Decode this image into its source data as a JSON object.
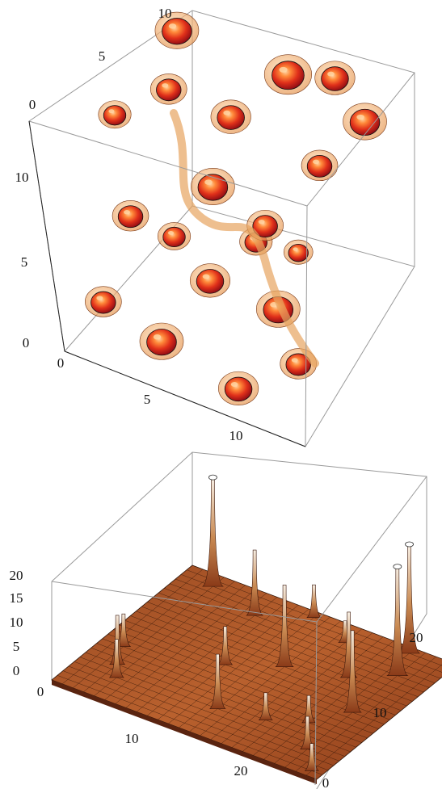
{
  "chart_data": [
    {
      "type": "3d-contour",
      "description_kind": "3D isosurface plot of density blobs inside a bounding cube",
      "axes": {
        "x": {
          "ticks": [
            "0",
            "5",
            "10"
          ],
          "range": [
            0,
            13
          ]
        },
        "y": {
          "ticks": [
            "0",
            "5",
            "10"
          ],
          "range": [
            0,
            13
          ]
        },
        "z": {
          "ticks": [
            "0",
            "5",
            "10"
          ],
          "range": [
            0,
            13
          ]
        },
        "back_top_ticks": [
          "0",
          "5",
          "10"
        ]
      },
      "colors": {
        "fill_outer": "#f0a060",
        "fill_inner": "#e0301a",
        "core": "#8a0a14",
        "highlight": "#ffd7a8",
        "box": "#888888"
      },
      "grid": false,
      "blobs": [
        {
          "x": 2,
          "y": 11,
          "z": 12,
          "r": 1.2
        },
        {
          "x": 3,
          "y": 8,
          "z": 11,
          "r": 1.0
        },
        {
          "x": 1,
          "y": 6,
          "z": 10,
          "r": 0.9
        },
        {
          "x": 5,
          "y": 10,
          "z": 9,
          "r": 1.1
        },
        {
          "x": 8,
          "y": 11,
          "z": 12,
          "r": 1.3
        },
        {
          "x": 10,
          "y": 12,
          "z": 12,
          "r": 1.1
        },
        {
          "x": 12,
          "y": 11,
          "z": 11,
          "r": 1.2
        },
        {
          "x": 11,
          "y": 8,
          "z": 10,
          "r": 1.0
        },
        {
          "x": 6,
          "y": 6,
          "z": 8,
          "r": 1.2
        },
        {
          "x": 3,
          "y": 3,
          "z": 7,
          "r": 1.0
        },
        {
          "x": 7,
          "y": 3,
          "z": 5,
          "r": 1.1
        },
        {
          "x": 10,
          "y": 4,
          "z": 4,
          "r": 1.2
        },
        {
          "x": 2,
          "y": 1,
          "z": 3,
          "r": 1.0
        },
        {
          "x": 5,
          "y": 1,
          "z": 2,
          "r": 1.2
        },
        {
          "x": 9,
          "y": 1,
          "z": 1,
          "r": 1.1
        },
        {
          "x": 12,
          "y": 2,
          "z": 3,
          "r": 1.0
        },
        {
          "x": 4,
          "y": 5,
          "z": 5,
          "r": 0.9
        },
        {
          "x": 8,
          "y": 7,
          "z": 6,
          "r": 1.0
        },
        {
          "x": 11,
          "y": 5,
          "z": 7,
          "r": 0.8
        },
        {
          "x": 6,
          "y": 9,
          "z": 3,
          "r": 0.9
        }
      ]
    },
    {
      "type": "surface",
      "description_kind": "3D surface plot over a 25x25 grid with sharp peaks",
      "axes": {
        "x": {
          "ticks": [
            "0",
            "10",
            "20"
          ],
          "range": [
            0,
            25
          ]
        },
        "y": {
          "ticks": [
            "0",
            "10",
            "20"
          ],
          "range": [
            0,
            25
          ]
        },
        "z": {
          "ticks": [
            "0",
            "5",
            "10",
            "15",
            "20"
          ],
          "range": [
            0,
            20
          ]
        }
      },
      "colors": {
        "surface_low": "#8a3a18",
        "surface_mid": "#c06a32",
        "surface_high": "#f4ece2",
        "mesh": "#2a1206",
        "box": "#888888"
      },
      "grid": false,
      "peaks": [
        {
          "x": 3,
          "y": 23,
          "height": 22
        },
        {
          "x": 22,
          "y": 20,
          "height": 22
        },
        {
          "x": 21,
          "y": 24,
          "height": 22
        },
        {
          "x": 8,
          "y": 21,
          "height": 12
        },
        {
          "x": 19,
          "y": 17,
          "height": 12
        },
        {
          "x": 14,
          "y": 15,
          "height": 15
        },
        {
          "x": 22,
          "y": 12,
          "height": 15
        },
        {
          "x": 12,
          "y": 24,
          "height": 6
        },
        {
          "x": 16,
          "y": 22,
          "height": 4
        },
        {
          "x": 10,
          "y": 12,
          "height": 7
        },
        {
          "x": 13,
          "y": 5,
          "height": 10
        },
        {
          "x": 2,
          "y": 9,
          "height": 6
        },
        {
          "x": 3,
          "y": 6,
          "height": 9
        },
        {
          "x": 4,
          "y": 4,
          "height": 7
        },
        {
          "x": 17,
          "y": 6,
          "height": 5
        },
        {
          "x": 22,
          "y": 4,
          "height": 6
        },
        {
          "x": 24,
          "y": 1,
          "height": 5
        },
        {
          "x": 20,
          "y": 8,
          "height": 5
        }
      ]
    }
  ]
}
